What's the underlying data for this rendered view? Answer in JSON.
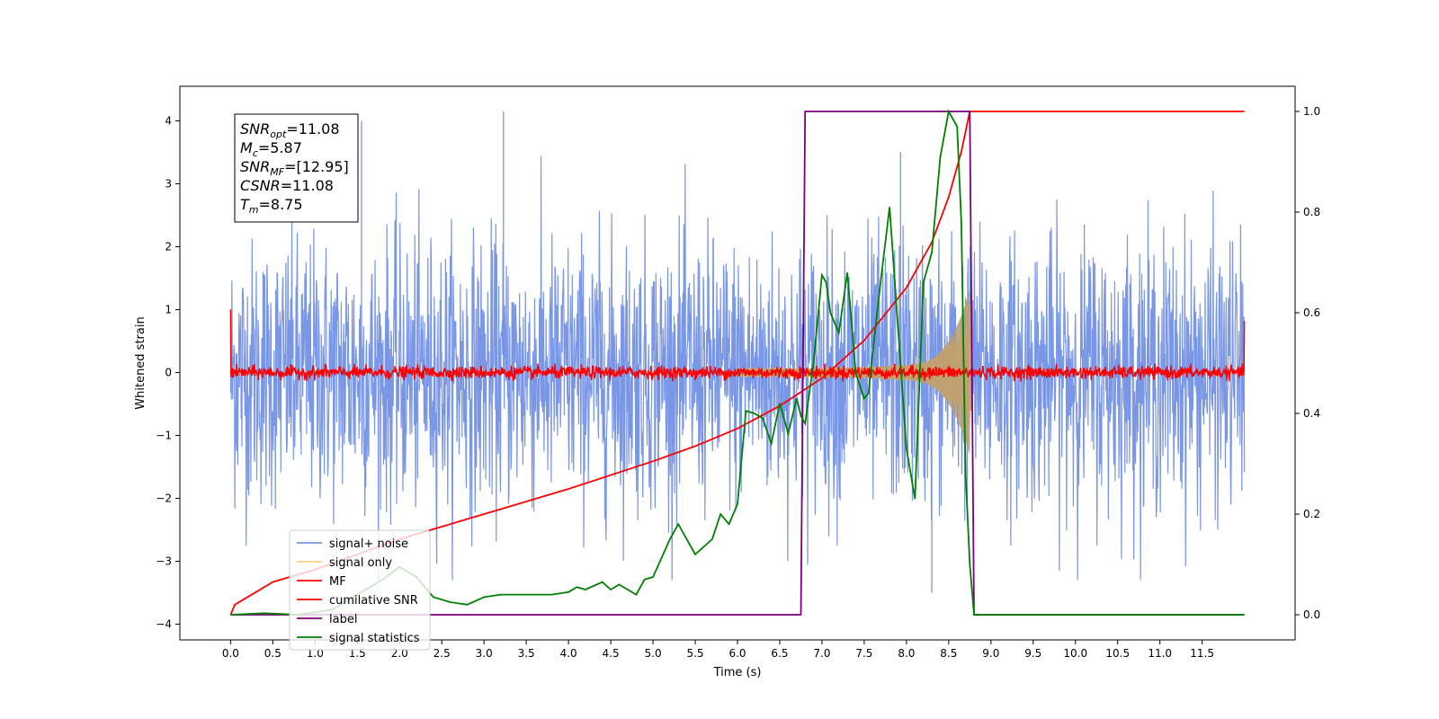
{
  "chart_data": {
    "type": "line",
    "xlabel": "Time (s)",
    "ylabel": "Whitened strain",
    "xlim": [
      -0.6,
      12.6
    ],
    "ylim_left": [
      -4.25,
      4.55
    ],
    "ylim_right": [
      -0.05,
      1.05
    ],
    "x_ticks": [
      "0.0",
      "0.5",
      "1.0",
      "1.5",
      "2.0",
      "2.5",
      "3.0",
      "3.5",
      "4.0",
      "4.5",
      "5.0",
      "5.5",
      "6.0",
      "6.5",
      "7.0",
      "7.5",
      "8.0",
      "8.5",
      "9.0",
      "9.5",
      "10.0",
      "10.5",
      "11.0",
      "11.5"
    ],
    "y_ticks_left": [
      "4",
      "3",
      "2",
      "1",
      "0",
      "−1",
      "−2",
      "−3",
      "−4"
    ],
    "y_ticks_right": [
      "1.0",
      "0.8",
      "0.6",
      "0.4",
      "0.2",
      "0.0"
    ],
    "legend_position": "lower-left",
    "annotation": {
      "lines": [
        {
          "var": "SNR",
          "sub": "opt",
          "value": "=11.08"
        },
        {
          "var": "M",
          "sub": "c",
          "value": "=5.87"
        },
        {
          "var": "SNR",
          "sub": "MF",
          "value": "=[12.95]"
        },
        {
          "var": "CSNR",
          "sub": "",
          "value": "=11.08"
        },
        {
          "var": "T",
          "sub": "m",
          "value": "=8.75"
        }
      ]
    },
    "series": [
      {
        "name": "signal+ noise",
        "color": "#7290e6",
        "axis": "left",
        "x_range": [
          0,
          12
        ],
        "approx_envelope": [
          -2.5,
          2.5
        ],
        "peak_max": 4.15,
        "peak_min": -3.55
      },
      {
        "name": "signal only",
        "color": "#ffbe5c",
        "axis": "left",
        "chirp_start": 6.0,
        "chirp_end": 8.75,
        "end_amplitude": 1.2
      },
      {
        "name": "MF",
        "color": "#ff0000",
        "axis": "left",
        "approx_envelope": [
          -0.12,
          0.12
        ],
        "edge_values": [
          1.0,
          0.82
        ]
      },
      {
        "name": "cumilative SNR",
        "color": "#ff0000",
        "axis": "right",
        "x": [
          0.0,
          0.05,
          0.5,
          1.0,
          2.0,
          3.0,
          4.0,
          5.0,
          5.5,
          6.0,
          6.5,
          7.0,
          7.5,
          8.0,
          8.3,
          8.5,
          8.65,
          8.75,
          12.0
        ],
        "y": [
          0.0,
          0.02,
          0.065,
          0.09,
          0.15,
          0.2,
          0.25,
          0.305,
          0.335,
          0.37,
          0.415,
          0.47,
          0.545,
          0.65,
          0.74,
          0.83,
          0.92,
          1.0,
          1.0
        ]
      },
      {
        "name": "label",
        "color": "#7b007b",
        "axis": "right",
        "x": [
          0.0,
          6.75,
          6.8,
          8.75,
          8.8,
          12.0
        ],
        "y": [
          0.0,
          0.0,
          1.0,
          1.0,
          0.0,
          0.0
        ]
      },
      {
        "name": "signal statistics",
        "color": "#008000",
        "axis": "right",
        "x": [
          0.0,
          0.4,
          0.8,
          1.2,
          1.4,
          1.6,
          1.8,
          2.0,
          2.2,
          2.4,
          2.6,
          2.8,
          3.0,
          3.2,
          3.5,
          3.8,
          4.0,
          4.1,
          4.2,
          4.4,
          4.5,
          4.6,
          4.8,
          4.9,
          5.0,
          5.2,
          5.3,
          5.5,
          5.7,
          5.8,
          5.9,
          6.0,
          6.1,
          6.2,
          6.3,
          6.4,
          6.5,
          6.6,
          6.7,
          6.75,
          6.8,
          6.9,
          7.0,
          7.05,
          7.1,
          7.2,
          7.3,
          7.4,
          7.5,
          7.55,
          7.6,
          7.7,
          7.8,
          7.9,
          8.0,
          8.05,
          8.1,
          8.2,
          8.3,
          8.4,
          8.5,
          8.6,
          8.65,
          8.7,
          8.75,
          8.8,
          8.9,
          9.0,
          12.0
        ],
        "y": [
          0.0,
          0.003,
          0.0,
          0.01,
          0.03,
          0.05,
          0.07,
          0.095,
          0.075,
          0.035,
          0.025,
          0.02,
          0.035,
          0.04,
          0.04,
          0.04,
          0.045,
          0.055,
          0.05,
          0.065,
          0.05,
          0.06,
          0.04,
          0.07,
          0.075,
          0.15,
          0.18,
          0.12,
          0.15,
          0.2,
          0.18,
          0.22,
          0.405,
          0.4,
          0.39,
          0.34,
          0.42,
          0.36,
          0.43,
          0.395,
          0.38,
          0.5,
          0.675,
          0.66,
          0.6,
          0.56,
          0.68,
          0.48,
          0.43,
          0.44,
          0.52,
          0.67,
          0.81,
          0.57,
          0.33,
          0.28,
          0.23,
          0.66,
          0.72,
          0.91,
          1.0,
          0.97,
          0.78,
          0.28,
          0.1,
          0.0,
          0.0,
          0.0,
          0.0
        ]
      }
    ]
  }
}
